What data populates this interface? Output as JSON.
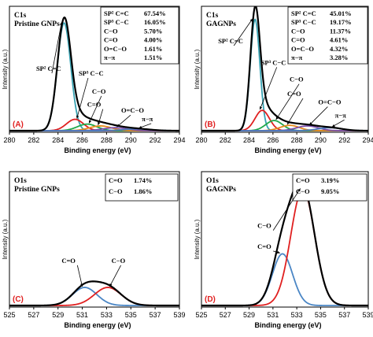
{
  "chart_data": [
    {
      "type": "line",
      "panel_label": "(A)",
      "title_lines": [
        "C1s",
        "Pristine GNPs"
      ],
      "xlabel": "Binding energy (eV)",
      "ylabel": "Intensity (a.u.)",
      "xlim": [
        280,
        294
      ],
      "xticks": [
        280,
        282,
        284,
        286,
        288,
        290,
        292,
        294
      ],
      "legend_table": [
        {
          "label": "SP² C=C",
          "value": "67.54%"
        },
        {
          "label": "SP³ C−C",
          "value": "16.05%"
        },
        {
          "label": "C−O",
          "value": "5.70%"
        },
        {
          "label": "C=O",
          "value": "4.00%"
        },
        {
          "label": "O=C−O",
          "value": "1.61%"
        },
        {
          "label": "π−π",
          "value": "1.51%"
        }
      ],
      "annotations": [
        {
          "text": "SP² C=C",
          "x": 282.2,
          "y": 0.5
        },
        {
          "text": "SP³ C−C",
          "x": 285.7,
          "y": 0.46
        },
        {
          "text": "C−O",
          "x": 286.8,
          "y": 0.31
        },
        {
          "text": "C=O",
          "x": 286.4,
          "y": 0.2
        },
        {
          "text": "O=C−O",
          "x": 289.2,
          "y": 0.15
        },
        {
          "text": "π−π",
          "x": 290.9,
          "y": 0.08
        }
      ],
      "series": [
        {
          "name": "SP² C=C",
          "color": "#39a3b3",
          "center": 284.5,
          "height": 0.9,
          "width": 0.55
        },
        {
          "name": "SP³ C−C",
          "color": "#e02020",
          "center": 285.4,
          "height": 0.095,
          "width": 0.7
        },
        {
          "name": "C−O",
          "color": "#1fa84a",
          "center": 286.4,
          "height": 0.055,
          "width": 0.8
        },
        {
          "name": "C=O",
          "color": "#e58a1c",
          "center": 287.5,
          "height": 0.04,
          "width": 0.9
        },
        {
          "name": "O=C−O",
          "color": "#7a4ea8",
          "center": 288.7,
          "height": 0.025,
          "width": 1.0
        },
        {
          "name": "π−π",
          "color": "#4a7bbf",
          "center": 290.5,
          "height": 0.015,
          "width": 1.1
        },
        {
          "name": "Envelope",
          "color": "#000000",
          "envelope": true
        }
      ]
    },
    {
      "type": "line",
      "panel_label": "(B)",
      "title_lines": [
        "C1s",
        "GAGNPs"
      ],
      "xlabel": "Binding energy (eV)",
      "ylabel": "Intensity (a.u.)",
      "xlim": [
        280,
        294
      ],
      "xticks": [
        280,
        282,
        284,
        286,
        288,
        290,
        292,
        294
      ],
      "legend_table": [
        {
          "label": "SP² C=C",
          "value": "45.01%"
        },
        {
          "label": "SP³ C−C",
          "value": "19.17%"
        },
        {
          "label": "C−O",
          "value": "11.37%"
        },
        {
          "label": "C=O",
          "value": "4.61%"
        },
        {
          "label": "O=C−O",
          "value": "4.32%"
        },
        {
          "label": "π−π",
          "value": "3.28%"
        }
      ],
      "annotations": [
        {
          "text": "SP² C=C",
          "x": 281.4,
          "y": 0.73
        },
        {
          "text": "SP³ C−C",
          "x": 285.0,
          "y": 0.55
        },
        {
          "text": "C−O",
          "x": 287.4,
          "y": 0.41
        },
        {
          "text": "C=O",
          "x": 287.2,
          "y": 0.29
        },
        {
          "text": "O=C−O",
          "x": 289.8,
          "y": 0.22
        },
        {
          "text": "π−π",
          "x": 291.2,
          "y": 0.11
        }
      ],
      "series": [
        {
          "name": "SP² C=C",
          "color": "#39a3b3",
          "center": 284.5,
          "height": 0.93,
          "width": 0.4
        },
        {
          "name": "SP³ C−C",
          "color": "#e02020",
          "center": 285.1,
          "height": 0.17,
          "width": 0.6
        },
        {
          "name": "C−O",
          "color": "#1fa84a",
          "center": 286.1,
          "height": 0.085,
          "width": 0.7
        },
        {
          "name": "C=O",
          "color": "#e58a1c",
          "center": 287.4,
          "height": 0.045,
          "width": 0.8
        },
        {
          "name": "O=C−O",
          "color": "#7a4ea8",
          "center": 288.9,
          "height": 0.04,
          "width": 0.9
        },
        {
          "name": "π−π",
          "color": "#4a7bbf",
          "center": 290.8,
          "height": 0.025,
          "width": 1.0
        },
        {
          "name": "Envelope",
          "color": "#000000",
          "envelope": true
        }
      ]
    },
    {
      "type": "line",
      "panel_label": "(C)",
      "title_lines": [
        "O1s",
        "Pristine GNPs"
      ],
      "xlabel": "Binding energy (eV)",
      "ylabel": "Intensity (a.u.)",
      "xlim": [
        525,
        539
      ],
      "xticks": [
        525,
        527,
        529,
        531,
        533,
        535,
        537,
        539
      ],
      "legend_table": [
        {
          "label": "C=O",
          "value": "1.74%"
        },
        {
          "label": "C−O",
          "value": "1.86%"
        }
      ],
      "annotations": [
        {
          "text": "C=O",
          "x": 529.3,
          "y": 0.33
        },
        {
          "text": "C−O",
          "x": 533.4,
          "y": 0.33
        }
      ],
      "series": [
        {
          "name": "C=O",
          "color": "#4a86c5",
          "center": 531.2,
          "height": 0.14,
          "width": 1.0
        },
        {
          "name": "C−O",
          "color": "#e02020",
          "center": 533.1,
          "height": 0.14,
          "width": 1.1
        },
        {
          "name": "Envelope",
          "color": "#000000",
          "envelope": true
        }
      ]
    },
    {
      "type": "line",
      "panel_label": "(D)",
      "title_lines": [
        "O1s",
        "GAGNPs"
      ],
      "xlabel": "Binding energy (eV)",
      "ylabel": "Intensity (a.u.)",
      "xlim": [
        525,
        539
      ],
      "xticks": [
        525,
        527,
        529,
        531,
        533,
        535,
        537,
        539
      ],
      "legend_table": [
        {
          "label": "C=O",
          "value": "3.19%"
        },
        {
          "label": "C−O",
          "value": "9.05%"
        }
      ],
      "annotations": [
        {
          "text": "C−O",
          "x": 529.7,
          "y": 0.6
        },
        {
          "text": "C=O",
          "x": 529.7,
          "y": 0.44
        }
      ],
      "series": [
        {
          "name": "C=O",
          "color": "#4a86c5",
          "center": 531.8,
          "height": 0.4,
          "width": 0.85
        },
        {
          "name": "C−O",
          "color": "#e02020",
          "center": 533.5,
          "height": 0.9,
          "width": 1.0
        },
        {
          "name": "Envelope",
          "color": "#000000",
          "envelope": true
        }
      ]
    }
  ]
}
